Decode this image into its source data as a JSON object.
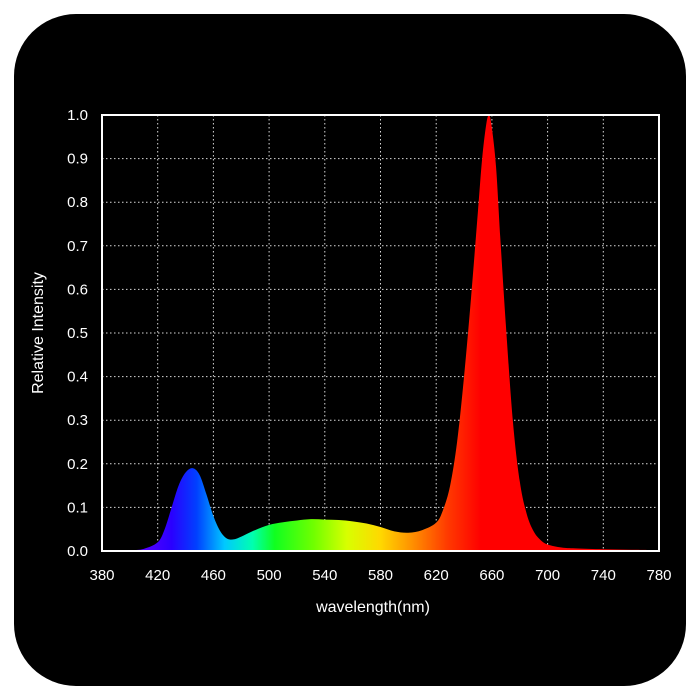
{
  "chart_data": {
    "type": "area",
    "title": "",
    "xlabel": "wavelength(nm)",
    "ylabel": "Relative Intensity",
    "xlim": [
      380,
      780
    ],
    "ylim": [
      0,
      1.0
    ],
    "x_ticks": [
      "380",
      "420",
      "460",
      "500",
      "540",
      "580",
      "620",
      "660",
      "700",
      "740",
      "780"
    ],
    "y_ticks": [
      "0.0",
      "0.1",
      "0.2",
      "0.3",
      "0.4",
      "0.5",
      "0.6",
      "0.7",
      "0.8",
      "0.9",
      "1.0"
    ],
    "grid": true,
    "fill": "spectral-gradient",
    "series": [
      {
        "x": [
          380,
          400,
          410,
          420,
          425,
          430,
          435,
          440,
          445,
          450,
          455,
          460,
          465,
          470,
          475,
          480,
          490,
          500,
          510,
          520,
          530,
          540,
          550,
          560,
          570,
          580,
          590,
          600,
          610,
          620,
          625,
          630,
          635,
          640,
          645,
          650,
          653,
          656,
          658,
          660,
          663,
          666,
          670,
          675,
          680,
          685,
          690,
          695,
          700,
          710,
          720,
          740,
          760,
          780
        ],
        "y": [
          0,
          0.002,
          0.005,
          0.02,
          0.05,
          0.1,
          0.15,
          0.18,
          0.19,
          0.175,
          0.13,
          0.08,
          0.045,
          0.028,
          0.027,
          0.033,
          0.048,
          0.06,
          0.066,
          0.07,
          0.073,
          0.072,
          0.071,
          0.068,
          0.063,
          0.055,
          0.045,
          0.042,
          0.048,
          0.065,
          0.095,
          0.15,
          0.25,
          0.4,
          0.58,
          0.78,
          0.9,
          0.98,
          1.0,
          0.97,
          0.88,
          0.72,
          0.52,
          0.3,
          0.16,
          0.085,
          0.045,
          0.025,
          0.015,
          0.008,
          0.006,
          0.004,
          0.003,
          0.002
        ]
      }
    ]
  }
}
